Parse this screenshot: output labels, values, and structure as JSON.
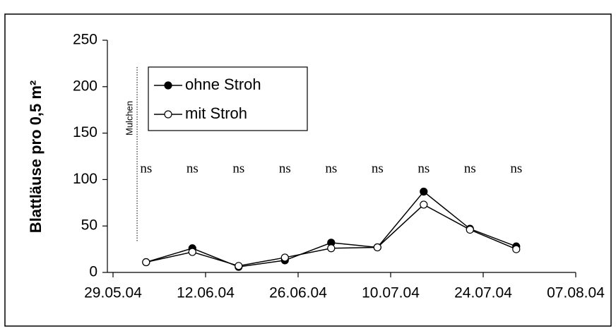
{
  "chart_data": {
    "type": "line",
    "y_label": "Blattläuse pro 0,5 m²",
    "x": [
      "03.06.04",
      "10.06.04",
      "17.06.04",
      "24.06.04",
      "01.07.04",
      "08.07.04",
      "15.07.04",
      "22.07.04",
      "29.07.04"
    ],
    "series": [
      {
        "name": "ohne Stroh",
        "color": "#000000",
        "marker": "filled",
        "values": [
          11,
          26,
          6,
          13,
          32,
          27,
          87,
          47,
          28
        ]
      },
      {
        "name": "mit Stroh",
        "color": "#000000",
        "marker": "open",
        "values": [
          11,
          22,
          7,
          16,
          26,
          27,
          73,
          46,
          25
        ]
      }
    ],
    "xlim": [
      "29.05.04",
      "07.08.04"
    ],
    "xticks": [
      "29.05.04",
      "12.06.04",
      "26.06.04",
      "10.07.04",
      "24.07.04",
      "07.08.04"
    ],
    "ylim": [
      0,
      250
    ],
    "yticks": [
      0,
      50,
      100,
      150,
      200,
      250
    ],
    "grid": false,
    "legend": "upper left",
    "marker_line": {
      "label": "Mulchen",
      "x": "01.06.04"
    },
    "annotations": [
      {
        "text": "ns",
        "x": "03.06.04",
        "y": 111
      },
      {
        "text": "ns",
        "x": "10.06.04",
        "y": 111
      },
      {
        "text": "ns",
        "x": "17.06.04",
        "y": 111
      },
      {
        "text": "ns",
        "x": "24.06.04",
        "y": 111
      },
      {
        "text": "ns",
        "x": "01.07.04",
        "y": 111
      },
      {
        "text": "ns",
        "x": "08.07.04",
        "y": 111
      },
      {
        "text": "ns",
        "x": "15.07.04",
        "y": 111
      },
      {
        "text": "ns",
        "x": "22.07.04",
        "y": 111
      },
      {
        "text": "ns",
        "x": "29.07.04",
        "y": 111
      }
    ]
  }
}
